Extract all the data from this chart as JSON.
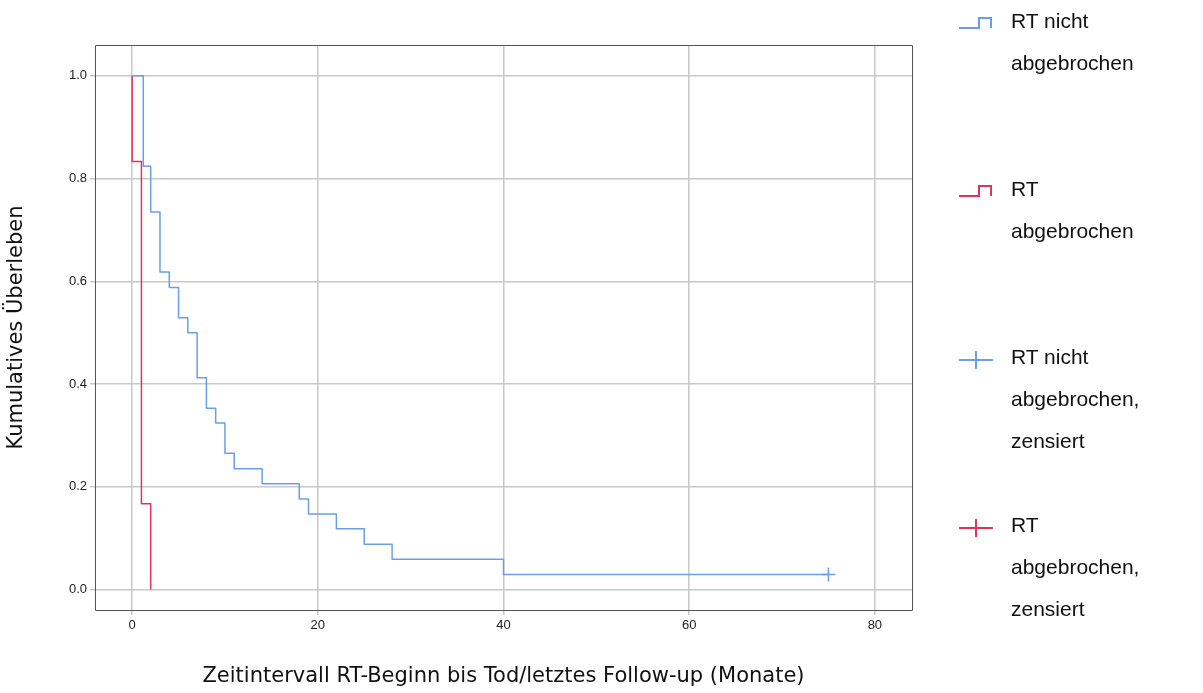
{
  "chart_data": {
    "type": "step",
    "xlabel": "Zeitintervall RT-Beginn bis Tod/letztes Follow-up (Monate)",
    "ylabel": "Kumulatives Überleben",
    "xlim": [
      -4,
      84
    ],
    "xticks": [
      0,
      20,
      40,
      60,
      80
    ],
    "ylim": [
      -0.04,
      1.06
    ],
    "yticks": [
      {
        "value": 0,
        "label": "0.0"
      },
      {
        "value": 0.2,
        "label": "0.2"
      },
      {
        "value": 0.4,
        "label": "0.4"
      },
      {
        "value": 0.6,
        "label": "0.6"
      },
      {
        "value": 0.8,
        "label": "0.8"
      },
      {
        "value": 1,
        "label": "1.0"
      }
    ],
    "grid": true,
    "legend": "right",
    "series": [
      {
        "name": "RT nicht abgebrochen",
        "color": "#6a9fe8",
        "x": [
          0,
          1.2,
          2,
          3,
          4,
          5,
          6,
          7,
          8,
          9,
          10,
          11,
          14,
          18,
          19,
          22,
          25,
          28,
          40,
          75
        ],
        "values": [
          1,
          0.824,
          0.735,
          0.618,
          0.588,
          0.529,
          0.5,
          0.412,
          0.353,
          0.324,
          0.265,
          0.235,
          0.206,
          0.176,
          0.147,
          0.118,
          0.088,
          0.059,
          0.029,
          0.029
        ]
      },
      {
        "name": "RT abgebrochen",
        "color": "#e0335a",
        "x": [
          0,
          0,
          1,
          2
        ],
        "values": [
          1,
          0.833,
          0.167,
          0
        ]
      },
      {
        "name": "RT nicht abgebrochen, zensiert",
        "type": "scatter",
        "marker": "cross",
        "color": "#6a9fe8",
        "x": [
          75
        ],
        "values": [
          0.029
        ]
      },
      {
        "name": "RT abgebrochen, zensiert",
        "type": "scatter",
        "marker": "cross",
        "color": "#e0335a"
      }
    ]
  }
}
